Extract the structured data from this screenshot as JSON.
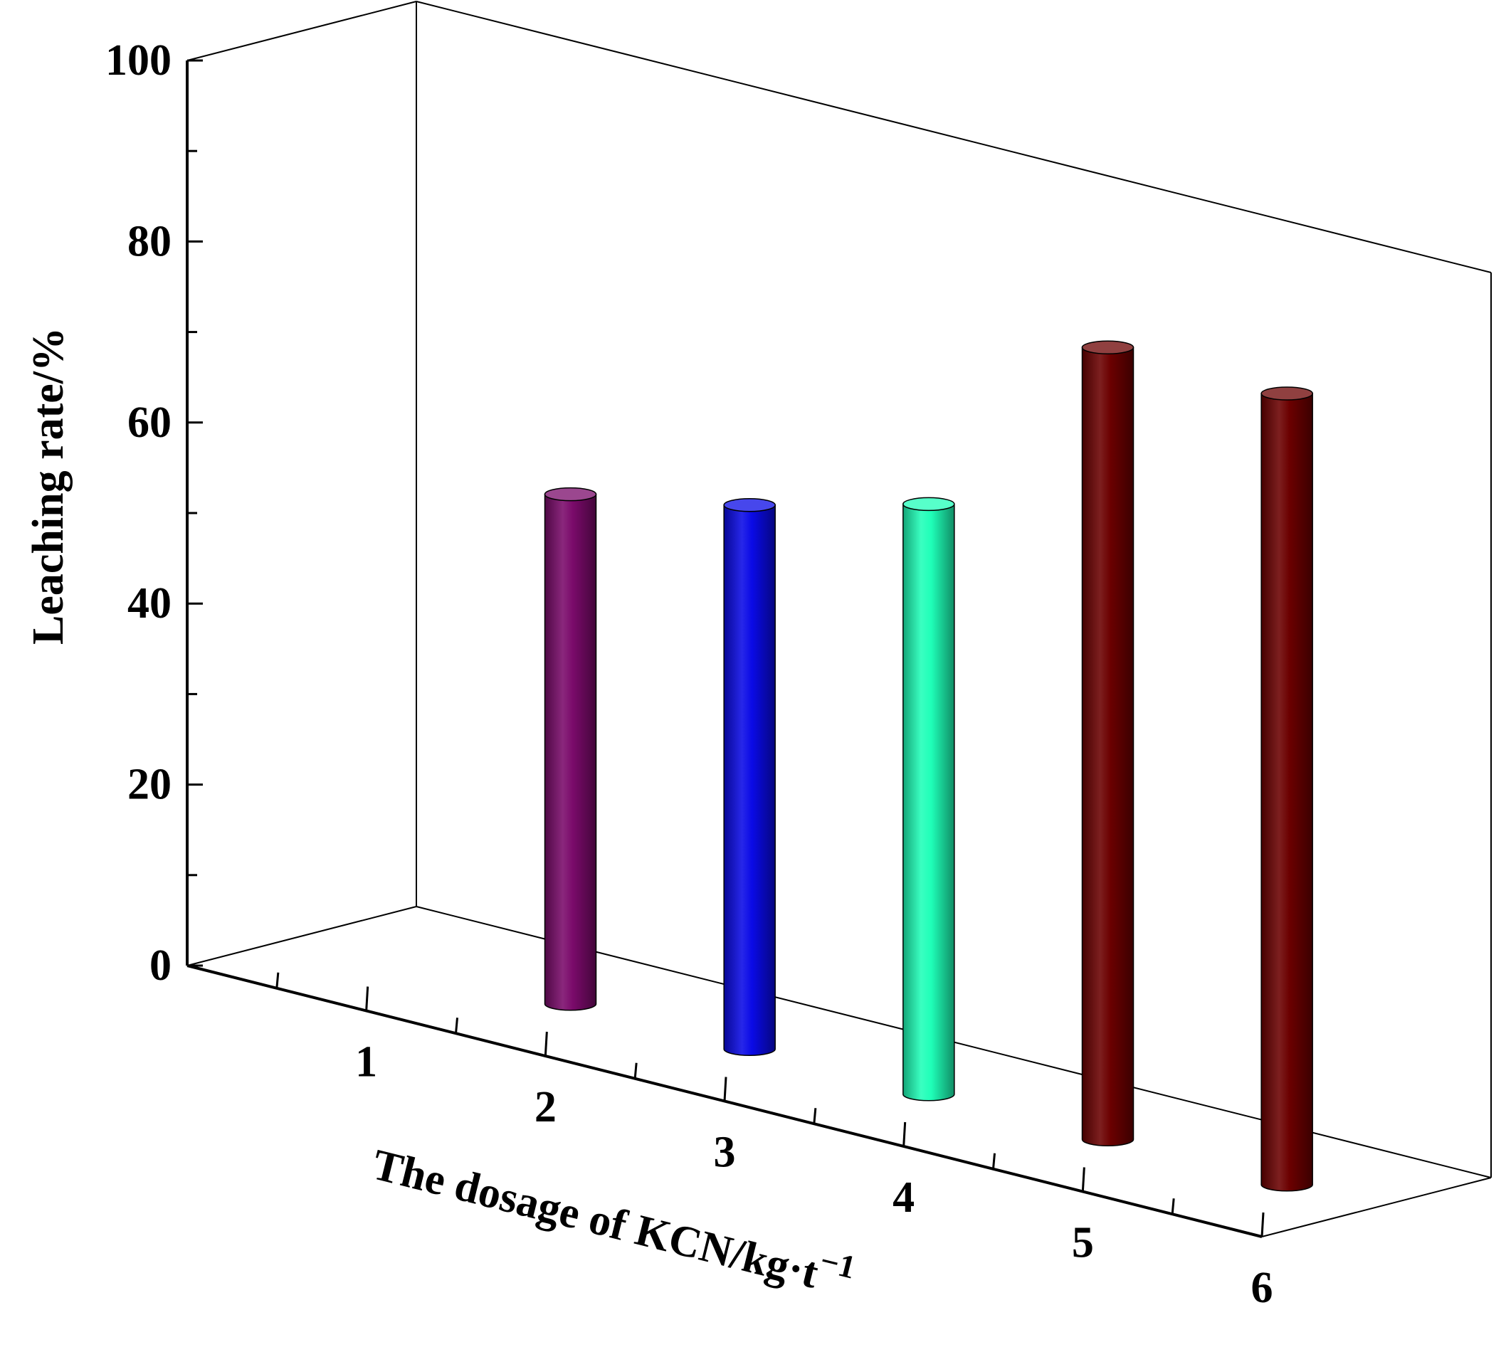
{
  "chart_data": {
    "type": "bar",
    "style": "3d-cylinder",
    "xlabel": "The dosage of KCN/kg·t",
    "xlabel_superscript": "−1",
    "ylabel": "Leaching rate/%",
    "ylim": [
      0,
      100
    ],
    "y_ticks": [
      0,
      20,
      40,
      60,
      80,
      100
    ],
    "x_ticks": [
      1,
      2,
      3,
      4,
      5,
      6
    ],
    "x_tick_labels": [
      "1",
      "2",
      "3",
      "4",
      "5",
      "6"
    ],
    "categories": [
      1.5,
      2.5,
      3.5,
      4.5,
      5.5
    ],
    "values": [
      56.3,
      60.1,
      65.2,
      87.5,
      87.4
    ],
    "colors": [
      "#7a0a6a",
      "#0a0ae6",
      "#1fffb8",
      "#6b0000",
      "#6b0000"
    ],
    "grid": false,
    "legend": "none"
  }
}
